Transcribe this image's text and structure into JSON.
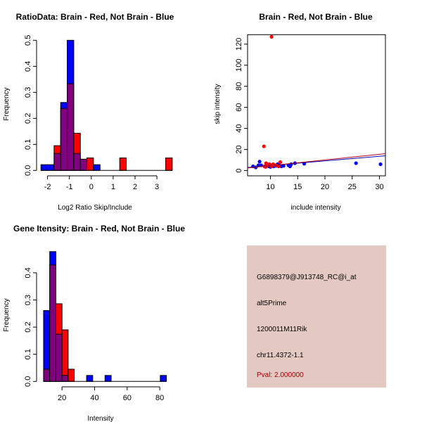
{
  "colors": {
    "red": "#FF0000",
    "blue": "#0000FF",
    "overlap": "#800080",
    "panel": "#E4C8C2",
    "pval": "#A00000"
  },
  "chart_data": [
    {
      "type": "bar",
      "title": "RatioData: Brain - Red, Not Brain - Blue",
      "xlabel": "Log2 Ratio Skip/Include",
      "ylabel": "Frequency",
      "bin_start": -2.3,
      "bin_width": 0.3,
      "series": [
        {
          "name": "Not Brain",
          "color": "blue",
          "values": [
            0.022,
            0.022,
            0.065,
            0.261,
            0.5,
            0.065,
            0.043,
            0,
            0.022,
            0,
            0,
            0,
            0,
            0,
            0,
            0,
            0,
            0,
            0,
            0
          ]
        },
        {
          "name": "Brain",
          "color": "red",
          "values": [
            0,
            0,
            0.095,
            0.238,
            0.333,
            0.143,
            0.043,
            0.048,
            0,
            0,
            0,
            0,
            0.048,
            0,
            0,
            0,
            0,
            0,
            0,
            0.048
          ]
        }
      ],
      "xticks": [
        "-2",
        "-1",
        "0",
        "1",
        "2",
        "3"
      ],
      "xtick_values": [
        -2,
        -1,
        0,
        1,
        2,
        3
      ],
      "yticks": [
        "0.0",
        "0.1",
        "0.2",
        "0.3",
        "0.4",
        "0.5"
      ],
      "ytick_values": [
        0,
        0.1,
        0.2,
        0.3,
        0.4,
        0.5
      ],
      "xlim": [
        -2.5,
        3.8
      ],
      "ylim": [
        0,
        0.5
      ]
    },
    {
      "type": "scatter",
      "title": "Brain - Red, Not Brain - Blue",
      "xlabel": "include intensity",
      "ylabel": "skip intensity",
      "xticks": [
        "10",
        "15",
        "20",
        "25",
        "30"
      ],
      "xtick_values": [
        10,
        15,
        20,
        25,
        30
      ],
      "yticks": [
        "0",
        "20",
        "40",
        "60",
        "80",
        "100",
        "120"
      ],
      "ytick_values": [
        0,
        20,
        40,
        60,
        80,
        100,
        120
      ],
      "xlim": [
        5.8,
        31.1
      ],
      "ylim": [
        -5,
        129
      ],
      "series": [
        {
          "name": "Not Brain",
          "color": "blue",
          "points": [
            [
              6.8,
              4
            ],
            [
              7.3,
              3
            ],
            [
              7.8,
              5
            ],
            [
              8.0,
              8.5
            ],
            [
              8.3,
              5
            ],
            [
              9.0,
              4
            ],
            [
              9.3,
              5
            ],
            [
              9.7,
              4
            ],
            [
              10,
              3.5
            ],
            [
              10.3,
              5
            ],
            [
              10.6,
              4
            ],
            [
              11,
              4.5
            ],
            [
              11.3,
              6
            ],
            [
              11.6,
              5
            ],
            [
              12,
              4
            ],
            [
              12.4,
              4.5
            ],
            [
              13.3,
              5
            ],
            [
              13.6,
              4
            ],
            [
              13.8,
              6
            ],
            [
              14.5,
              7
            ],
            [
              16.2,
              6.5
            ],
            [
              25.7,
              7
            ],
            [
              30.2,
              6
            ]
          ],
          "fit": {
            "intercept": 0.36,
            "slope": 0.44
          }
        },
        {
          "name": "Brain",
          "color": "red",
          "points": [
            [
              8.8,
              23
            ],
            [
              10.2,
              127
            ],
            [
              8.9,
              4
            ],
            [
              9.1,
              3.5
            ],
            [
              9.2,
              7
            ],
            [
              9.5,
              5
            ],
            [
              9.8,
              6
            ],
            [
              10.2,
              4
            ],
            [
              10.5,
              6
            ],
            [
              11,
              5
            ],
            [
              11.5,
              4
            ],
            [
              11.8,
              8
            ]
          ],
          "fit": {
            "intercept": -0.74,
            "slope": 0.54
          }
        }
      ]
    },
    {
      "type": "bar",
      "title": "Gene Itensity: Brain - Red, Not Brain - Blue",
      "xlabel": "Intensity",
      "ylabel": "Frequency",
      "bin_start": 8.7,
      "bin_width": 3.77,
      "series": [
        {
          "name": "Not Brain",
          "color": "blue",
          "values": [
            0.261,
            0.478,
            0.174,
            0.022,
            0,
            0,
            0,
            0.022,
            0,
            0,
            0.022,
            0,
            0,
            0,
            0,
            0,
            0,
            0,
            0,
            0.022
          ]
        },
        {
          "name": "Brain",
          "color": "red",
          "values": [
            0.045,
            0.429,
            0.286,
            0.19,
            0.045,
            0,
            0,
            0,
            0,
            0,
            0,
            0,
            0,
            0,
            0,
            0,
            0,
            0,
            0,
            0
          ]
        }
      ],
      "xticks": [
        "20",
        "40",
        "60",
        "80"
      ],
      "xtick_values": [
        20,
        40,
        60,
        80
      ],
      "yticks": [
        "0.0",
        "0.1",
        "0.2",
        "0.3",
        "0.4"
      ],
      "ytick_values": [
        0,
        0.1,
        0.2,
        0.3,
        0.4
      ],
      "xlim": [
        4.4,
        89
      ],
      "ylim": [
        0,
        0.48
      ]
    }
  ],
  "info_panel": {
    "probe": "G6898379@J913748_RC@i_at",
    "event": "alt5Prime",
    "gene": "1200011M11Rik",
    "locus": "chr11.4372-1.1",
    "pval": "Pval: 2.000000"
  }
}
